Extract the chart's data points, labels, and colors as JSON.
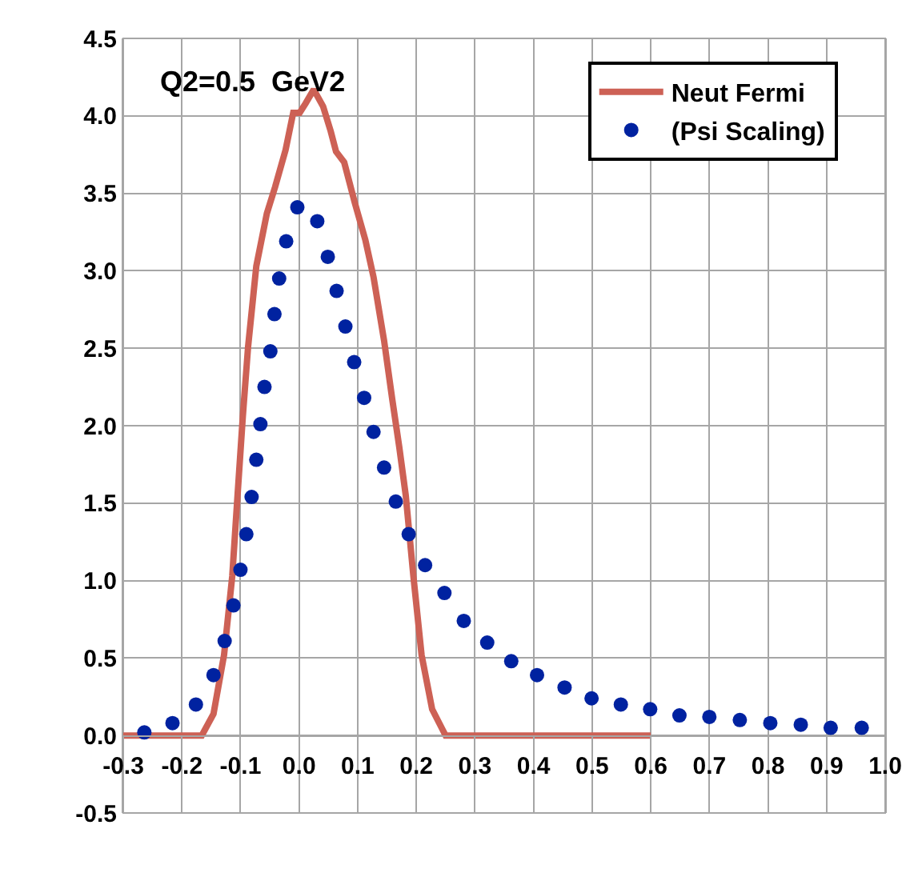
{
  "chart_data": {
    "type": "line",
    "annotations": [
      "Q2=0.5  GeV2"
    ],
    "series": [
      {
        "name": "Neut Fermi",
        "color": "#cd6155",
        "marker": "none",
        "line_style": "solid",
        "x": [
          -0.3,
          -0.166,
          -0.146,
          -0.128,
          -0.114,
          -0.105,
          -0.096,
          -0.087,
          -0.073,
          -0.055,
          -0.041,
          -0.023,
          -0.01,
          0.001,
          0.011,
          0.025,
          0.041,
          0.054,
          0.063,
          0.077,
          0.095,
          0.113,
          0.127,
          0.145,
          0.159,
          0.171,
          0.182,
          0.195,
          0.209,
          0.227,
          0.25,
          0.6
        ],
        "values": [
          0,
          0,
          0.14,
          0.52,
          1.03,
          1.55,
          2.06,
          2.51,
          3.03,
          3.37,
          3.54,
          3.78,
          4.02,
          4.02,
          4.08,
          4.17,
          4.06,
          3.9,
          3.77,
          3.7,
          3.44,
          3.2,
          2.96,
          2.55,
          2.17,
          1.86,
          1.55,
          1.03,
          0.52,
          0.17,
          0,
          0
        ]
      },
      {
        "name": "(Psi Scaling)",
        "type": "scatter",
        "color": "#0022a0",
        "marker": "circle",
        "x": [
          -0.264,
          -0.216,
          -0.176,
          -0.146,
          -0.127,
          -0.112,
          -0.1,
          -0.09,
          -0.081,
          -0.073,
          -0.066,
          -0.059,
          -0.049,
          -0.042,
          -0.034,
          -0.022,
          -0.003,
          0.031,
          0.049,
          0.064,
          0.079,
          0.094,
          0.111,
          0.127,
          0.145,
          0.165,
          0.187,
          0.215,
          0.248,
          0.281,
          0.321,
          0.362,
          0.406,
          0.453,
          0.499,
          0.549,
          0.599,
          0.649,
          0.7,
          0.752,
          0.804,
          0.856,
          0.907,
          0.96
        ],
        "values": [
          0.02,
          0.08,
          0.2,
          0.39,
          0.61,
          0.84,
          1.07,
          1.3,
          1.54,
          1.78,
          2.01,
          2.25,
          2.48,
          2.72,
          2.95,
          3.19,
          3.41,
          3.32,
          3.09,
          2.87,
          2.64,
          2.41,
          2.18,
          1.96,
          1.73,
          1.51,
          1.3,
          1.1,
          0.92,
          0.74,
          0.6,
          0.48,
          0.39,
          0.31,
          0.24,
          0.2,
          0.17,
          0.13,
          0.12,
          0.1,
          0.08,
          0.07,
          0.05,
          0.05
        ]
      }
    ],
    "xlim": [
      -0.3,
      1.0
    ],
    "xticks": [
      -0.3,
      -0.2,
      -0.1,
      {
        "value": 0,
        "label": "0.0"
      },
      0.1,
      0.2,
      0.3,
      0.4,
      0.5,
      0.6,
      0.7,
      0.8,
      0.9,
      {
        "value": 1.0,
        "label": "1.0"
      }
    ],
    "ylim": [
      -0.5,
      4.5
    ],
    "yticks": [
      -0.5,
      {
        "value": 0,
        "label": "0.0"
      },
      0.5,
      {
        "value": 1,
        "label": "1.0"
      },
      1.5,
      {
        "value": 2,
        "label": "2.0"
      },
      2.5,
      {
        "value": 3,
        "label": "3.0"
      },
      3.5,
      {
        "value": 4,
        "label": "4.0"
      },
      4.5
    ],
    "grid": true,
    "legend": "top right"
  }
}
